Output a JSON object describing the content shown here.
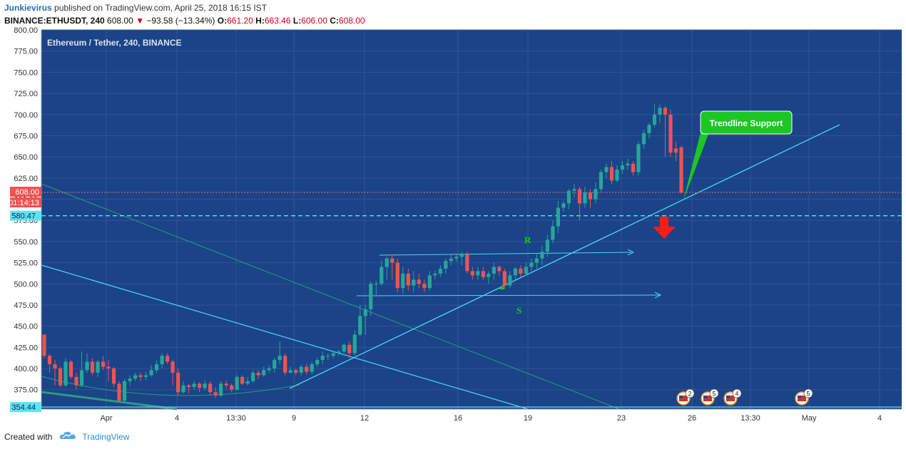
{
  "header": {
    "author": "Junkievirus",
    "published_text": "published on TradingView.com, April 25, 2018 16:15 IST",
    "symbol": "BINANCE:ETHUSDT, 240",
    "last": "608.00",
    "change": "−93.58 (−13.34%)",
    "o_label": "O:",
    "o": "661.20",
    "h_label": "H:",
    "h": "663.46",
    "l_label": "L:",
    "l": "606.00",
    "c_label": "C:",
    "c": "608.00"
  },
  "footer": {
    "created_with": "Created with",
    "brand": "TradingView"
  },
  "colors": {
    "background": "#1b4387",
    "up": "#26a69a",
    "down": "#ef5350",
    "trendline": "#4dd8f0",
    "label_green": "#1cc624",
    "price_tag": "#ef5350",
    "level_tag": "#5ee3f6"
  },
  "chart_data": {
    "type": "candlestick",
    "title": "Ethereum / Tether, 240, BINANCE",
    "ylim": [
      350,
      800
    ],
    "y_ticks": [
      "800.00",
      "775.00",
      "750.00",
      "725.00",
      "700.00",
      "675.00",
      "650.00",
      "625.00",
      "600.00",
      "575.00",
      "550.00",
      "525.00",
      "500.00",
      "475.00",
      "450.00",
      "425.00",
      "400.00",
      "375.00"
    ],
    "x_ticks": [
      "Apr",
      "4",
      "13:30",
      "9",
      "12",
      "16",
      "19",
      "23",
      "26",
      "13:30",
      "May",
      "4"
    ],
    "candles": [
      [
        440,
        415,
        440,
        412
      ],
      [
        415,
        405,
        417,
        395
      ],
      [
        405,
        400,
        410,
        380
      ],
      [
        400,
        380,
        402,
        378
      ],
      [
        380,
        408,
        412,
        378
      ],
      [
        408,
        390,
        410,
        388
      ],
      [
        390,
        380,
        395,
        375
      ],
      [
        380,
        398,
        420,
        378
      ],
      [
        398,
        408,
        418,
        395
      ],
      [
        408,
        395,
        412,
        392
      ],
      [
        395,
        408,
        410,
        390
      ],
      [
        408,
        402,
        415,
        398
      ],
      [
        402,
        400,
        410,
        385
      ],
      [
        400,
        382,
        402,
        378
      ],
      [
        382,
        362,
        385,
        360
      ],
      [
        362,
        385,
        388,
        360
      ],
      [
        385,
        388,
        392,
        380
      ],
      [
        388,
        392,
        395,
        385
      ],
      [
        392,
        390,
        395,
        385
      ],
      [
        390,
        392,
        396,
        386
      ],
      [
        392,
        398,
        404,
        390
      ],
      [
        398,
        405,
        410,
        395
      ],
      [
        405,
        415,
        418,
        400
      ],
      [
        415,
        408,
        418,
        405
      ],
      [
        408,
        395,
        410,
        380
      ],
      [
        395,
        372,
        400,
        368
      ],
      [
        372,
        380,
        385,
        370
      ],
      [
        380,
        378,
        382,
        370
      ],
      [
        378,
        382,
        385,
        375
      ],
      [
        382,
        377,
        384,
        372
      ],
      [
        377,
        382,
        386,
        374
      ],
      [
        382,
        372,
        385,
        368
      ],
      [
        372,
        368,
        378,
        365
      ],
      [
        368,
        382,
        385,
        366
      ],
      [
        382,
        380,
        386,
        376
      ],
      [
        380,
        375,
        382,
        372
      ],
      [
        375,
        390,
        392,
        374
      ],
      [
        390,
        382,
        392,
        380
      ],
      [
        382,
        385,
        390,
        380
      ],
      [
        385,
        395,
        398,
        383
      ],
      [
        395,
        392,
        398,
        388
      ],
      [
        392,
        398,
        402,
        390
      ],
      [
        398,
        400,
        404,
        395
      ],
      [
        400,
        410,
        413,
        395
      ],
      [
        410,
        415,
        432,
        405
      ],
      [
        415,
        395,
        418,
        392
      ],
      [
        395,
        398,
        402,
        394
      ],
      [
        398,
        395,
        400,
        392
      ],
      [
        395,
        402,
        405,
        392
      ],
      [
        402,
        396,
        406,
        393
      ],
      [
        396,
        405,
        408,
        393
      ],
      [
        405,
        410,
        413,
        402
      ],
      [
        410,
        415,
        420,
        405
      ],
      [
        415,
        415,
        418,
        410
      ],
      [
        415,
        418,
        420,
        412
      ],
      [
        418,
        420,
        422,
        415
      ],
      [
        420,
        428,
        430,
        418
      ],
      [
        428,
        418,
        432,
        412
      ],
      [
        418,
        440,
        445,
        415
      ],
      [
        440,
        462,
        475,
        438
      ],
      [
        462,
        470,
        475,
        440
      ],
      [
        470,
        500,
        503,
        462
      ],
      [
        500,
        500,
        504,
        485
      ],
      [
        500,
        520,
        528,
        498
      ],
      [
        520,
        530,
        532,
        505
      ],
      [
        530,
        525,
        535,
        505
      ],
      [
        525,
        495,
        530,
        490
      ],
      [
        495,
        512,
        520,
        488
      ],
      [
        512,
        498,
        518,
        492
      ],
      [
        498,
        505,
        515,
        490
      ],
      [
        505,
        500,
        512,
        495
      ],
      [
        500,
        495,
        505,
        490
      ],
      [
        495,
        510,
        515,
        492
      ],
      [
        510,
        512,
        516,
        505
      ],
      [
        512,
        518,
        522,
        508
      ],
      [
        518,
        527,
        530,
        512
      ],
      [
        527,
        530,
        535,
        522
      ],
      [
        530,
        532,
        536,
        526
      ],
      [
        532,
        535,
        538,
        522
      ],
      [
        535,
        515,
        538,
        512
      ],
      [
        515,
        510,
        520,
        505
      ],
      [
        510,
        515,
        520,
        505
      ],
      [
        515,
        508,
        520,
        505
      ],
      [
        508,
        512,
        515,
        500
      ],
      [
        512,
        520,
        525,
        505
      ],
      [
        520,
        515,
        522,
        510
      ],
      [
        515,
        498,
        518,
        495
      ],
      [
        498,
        510,
        515,
        495
      ],
      [
        510,
        518,
        520,
        505
      ],
      [
        518,
        512,
        522,
        508
      ],
      [
        512,
        520,
        525,
        510
      ],
      [
        520,
        525,
        530,
        515
      ],
      [
        525,
        530,
        535,
        518
      ],
      [
        530,
        538,
        545,
        522
      ],
      [
        538,
        552,
        558,
        532
      ],
      [
        552,
        568,
        575,
        548
      ],
      [
        568,
        590,
        598,
        560
      ],
      [
        590,
        595,
        598,
        585
      ],
      [
        595,
        610,
        612,
        588
      ],
      [
        610,
        612,
        618,
        602
      ],
      [
        612,
        595,
        615,
        575
      ],
      [
        595,
        608,
        615,
        590
      ],
      [
        608,
        600,
        612,
        590
      ],
      [
        600,
        612,
        620,
        595
      ],
      [
        612,
        632,
        635,
        608
      ],
      [
        632,
        638,
        642,
        625
      ],
      [
        638,
        622,
        645,
        618
      ],
      [
        622,
        635,
        640,
        620
      ],
      [
        635,
        640,
        645,
        630
      ],
      [
        640,
        642,
        648,
        635
      ],
      [
        642,
        632,
        645,
        628
      ],
      [
        632,
        665,
        668,
        628
      ],
      [
        665,
        678,
        682,
        660
      ],
      [
        678,
        688,
        690,
        672
      ],
      [
        688,
        700,
        712,
        685
      ],
      [
        700,
        708,
        712,
        690
      ],
      [
        708,
        700,
        710,
        650
      ],
      [
        700,
        655,
        706,
        650
      ],
      [
        660,
        655,
        668,
        645
      ],
      [
        661.2,
        608,
        663.46,
        606
      ]
    ],
    "current_price": "608.00",
    "countdown": "01:14:13",
    "level_price": "580.47",
    "bottom_price": "354.44",
    "annotations": {
      "r": "R",
      "s": "S",
      "callout": "Trendline Support"
    },
    "event_badges": [
      "2",
      "5",
      "4",
      "5"
    ]
  }
}
